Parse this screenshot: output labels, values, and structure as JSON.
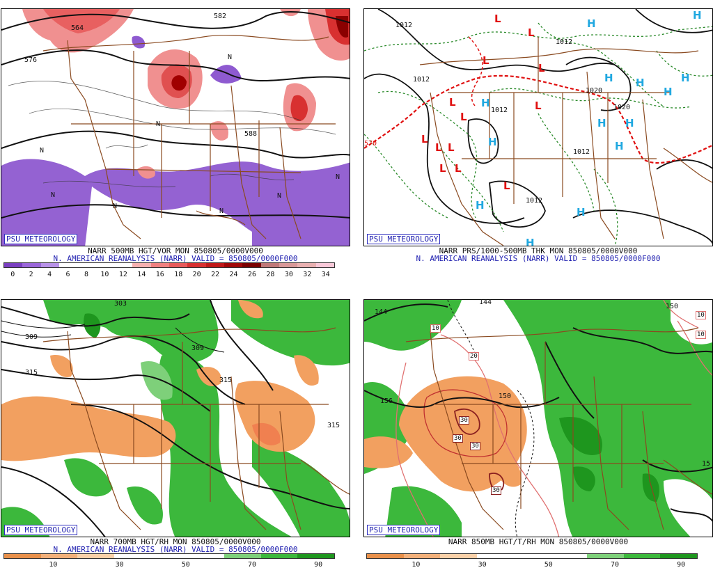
{
  "panels": [
    {
      "badge": "PSU METEOROLOGY",
      "caption": "NARR 500MB HGT/VOR MON 850805/0000V000",
      "subcaption": "N. AMERICAN REANALYSIS (NARR) VALID = 850805/0000F000",
      "contour_labels": [
        "564",
        "576",
        "582",
        "588"
      ],
      "symbol": "N",
      "colorbar": {
        "ticks": [
          "0",
          "2",
          "4",
          "6",
          "8",
          "10",
          "12",
          "14",
          "16",
          "18",
          "20",
          "22",
          "24",
          "26",
          "28",
          "30",
          "32",
          "34"
        ],
        "colors": [
          "#7a3fc0",
          "#9a66d8",
          "#b892e8",
          "#ffffff",
          "#ffffff",
          "#ffffff",
          "#ffffff",
          "#f6b0b0",
          "#f08080",
          "#e85a5a",
          "#d83030",
          "#c01818",
          "#a00808",
          "#7a0000",
          "#c07878",
          "#d89898",
          "#e8b0b0",
          "#f8c8d8"
        ]
      }
    },
    {
      "badge": "PSU METEOROLOGY",
      "caption": "NARR PRS/1000-500MB THK MON 850805/0000V000",
      "subcaption": "N. AMERICAN REANALYSIS (NARR) VALID = 850805/0000F000",
      "contour_labels": [
        "1012",
        "1012",
        "1012",
        "1012",
        "1012",
        "1012",
        "1020",
        "1020",
        "570"
      ],
      "high_symbol": "H",
      "low_symbol": "L"
    },
    {
      "badge": "PSU METEOROLOGY",
      "caption": "NARR 700MB HGT/RH MON 850805/0000V000",
      "subcaption": "N. AMERICAN REANALYSIS (NARR) VALID = 850805/0000F000",
      "contour_labels": [
        "303",
        "309",
        "309",
        "315",
        "315",
        "315"
      ],
      "colorbar": {
        "ticks": [
          "10",
          "30",
          "50",
          "70",
          "90"
        ],
        "colors": [
          "#e8904a",
          "#f2b07a",
          "#fad0a8",
          "#ffffff",
          "#ffffff",
          "#ffffff",
          "#7ed07a",
          "#3cb83c",
          "#1e961e"
        ]
      }
    },
    {
      "badge": "PSU METEOROLOGY",
      "caption": "NARR 850MB HGT/T/RH MON 850805/0000V000",
      "subcaption": "",
      "contour_labels": [
        "144",
        "144",
        "150",
        "150",
        "156",
        "150",
        "15"
      ],
      "temp_labels": [
        "10",
        "10",
        "10",
        "20",
        "30",
        "30",
        "30",
        "30"
      ],
      "colorbar": {
        "ticks": [
          "10",
          "30",
          "50",
          "70",
          "90"
        ],
        "colors": [
          "#e8904a",
          "#f2b07a",
          "#fad0a8",
          "#ffffff",
          "#ffffff",
          "#ffffff",
          "#7ed07a",
          "#3cb83c",
          "#1e961e"
        ]
      }
    }
  ]
}
